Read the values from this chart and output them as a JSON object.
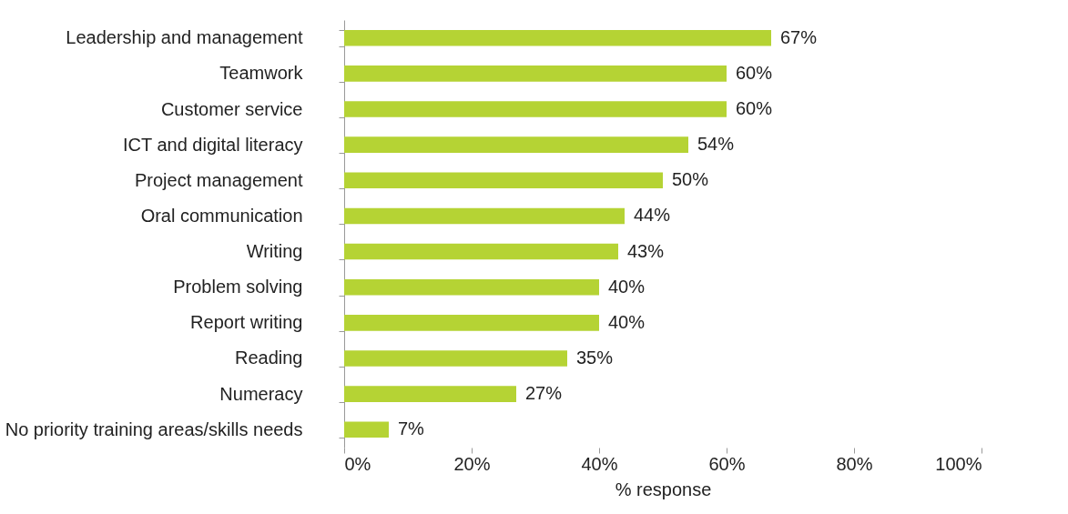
{
  "chart_data": {
    "type": "bar",
    "orientation": "horizontal",
    "xlabel": "% response",
    "categories": [
      "Leadership and management",
      "Teamwork",
      "Customer service",
      "ICT and digital literacy",
      "Project management",
      "Oral communication",
      "Writing",
      "Problem solving",
      "Report writing",
      "Reading",
      "Numeracy",
      "No priority training areas/skills needs"
    ],
    "values": [
      67,
      60,
      60,
      54,
      50,
      44,
      43,
      40,
      40,
      35,
      27,
      7
    ],
    "value_labels": [
      "67%",
      "60%",
      "60%",
      "54%",
      "50%",
      "44%",
      "43%",
      "40%",
      "40%",
      "35%",
      "27%",
      "7%"
    ],
    "color": "#b5d334",
    "xlim": [
      0,
      100
    ],
    "xticks": [
      {
        "value": 0,
        "label": "0%"
      },
      {
        "value": 20,
        "label": "20%"
      },
      {
        "value": 40,
        "label": "40%"
      },
      {
        "value": 60,
        "label": "60%"
      },
      {
        "value": 80,
        "label": "80%"
      },
      {
        "value": 100,
        "label": "100%"
      }
    ],
    "grid": false
  }
}
